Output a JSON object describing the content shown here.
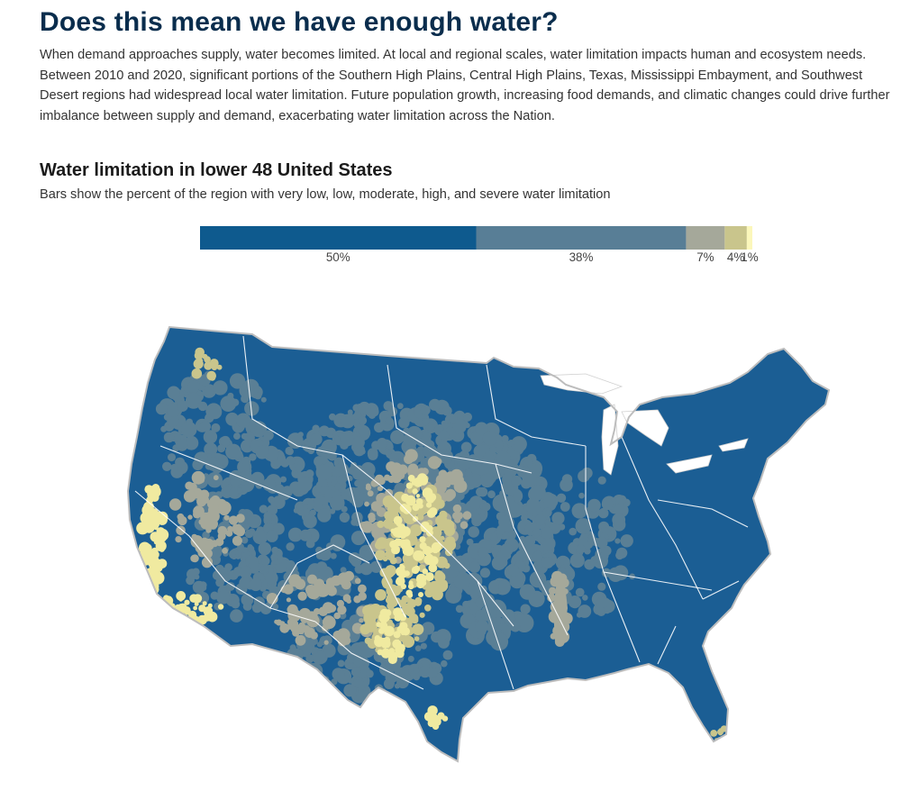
{
  "page": {
    "title": "Does this mean we have enough water?",
    "intro": "When demand approaches supply, water becomes limited. At local and regional scales, water limitation impacts human and ecosystem needs. Between 2010 and 2020, significant portions of the Southern High Plains, Central High Plains, Texas, Mississippi Embayment, and Southwest Desert regions had widespread local water limitation. Future population growth, increasing food demands, and climatic changes could drive further imbalance between supply and demand, exacerbating water limitation across the Nation."
  },
  "chart_data": {
    "type": "bar",
    "title": "Water limitation in lower 48 United States",
    "subtitle": "Bars show the percent of the region with very low, low, moderate, high, and severe water limitation",
    "categories": [
      "very low",
      "low",
      "moderate",
      "high",
      "severe"
    ],
    "values": [
      50,
      38,
      7,
      4,
      1
    ],
    "value_labels": [
      "50%",
      "38%",
      "7%",
      "4%",
      "1%"
    ],
    "colors": [
      "#0e5a8e",
      "#587e96",
      "#a5a89a",
      "#c9c58c",
      "#fbf7bb"
    ],
    "stacked": true,
    "orientation": "horizontal",
    "xlim": [
      0,
      100
    ]
  },
  "map": {
    "colors": {
      "very_low": "#1b5e94",
      "low": "#5a7f95",
      "moderate": "#a5a89a",
      "high": "#c9c58c",
      "severe": "#f0eaa0",
      "outline": "#bdbdbd",
      "boundary": "#ffffff"
    }
  }
}
